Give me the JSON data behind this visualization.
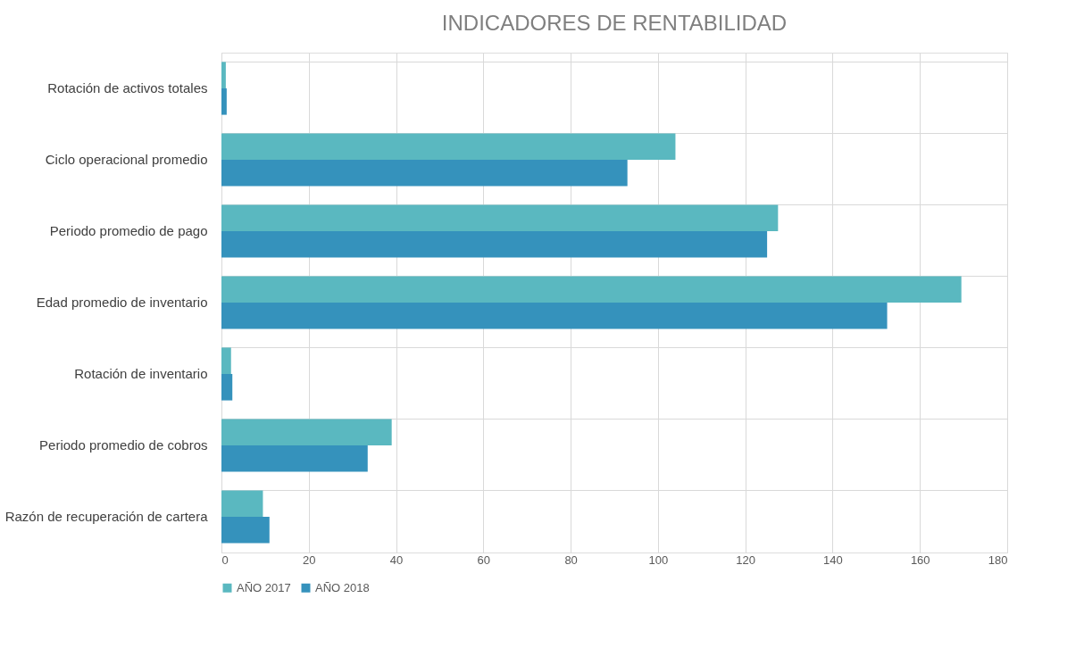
{
  "chart_data": {
    "type": "bar",
    "orientation": "horizontal",
    "title": "INDICADORES DE RENTABILIDAD",
    "categories": [
      "Rotación de activos totales",
      "Ciclo operacional promedio",
      "Periodo promedio de pago",
      "Edad promedio de inventario",
      "Rotación de inventario",
      "Periodo promedio de cobros",
      "Razón de recuperación de cartera"
    ],
    "series": [
      {
        "name": "AÑO 2017",
        "color": "#5ab8c0",
        "values": [
          1.0,
          104,
          127.5,
          169.5,
          2.2,
          39,
          9.5
        ]
      },
      {
        "name": "AÑO 2018",
        "color": "#3592bc",
        "values": [
          1.2,
          93,
          125,
          152.5,
          2.5,
          33.5,
          11
        ]
      }
    ],
    "xlim": [
      0,
      180
    ],
    "xticks": [
      0,
      20,
      40,
      60,
      80,
      100,
      120,
      140,
      160,
      180
    ],
    "grid": true,
    "legend": "bottom"
  }
}
